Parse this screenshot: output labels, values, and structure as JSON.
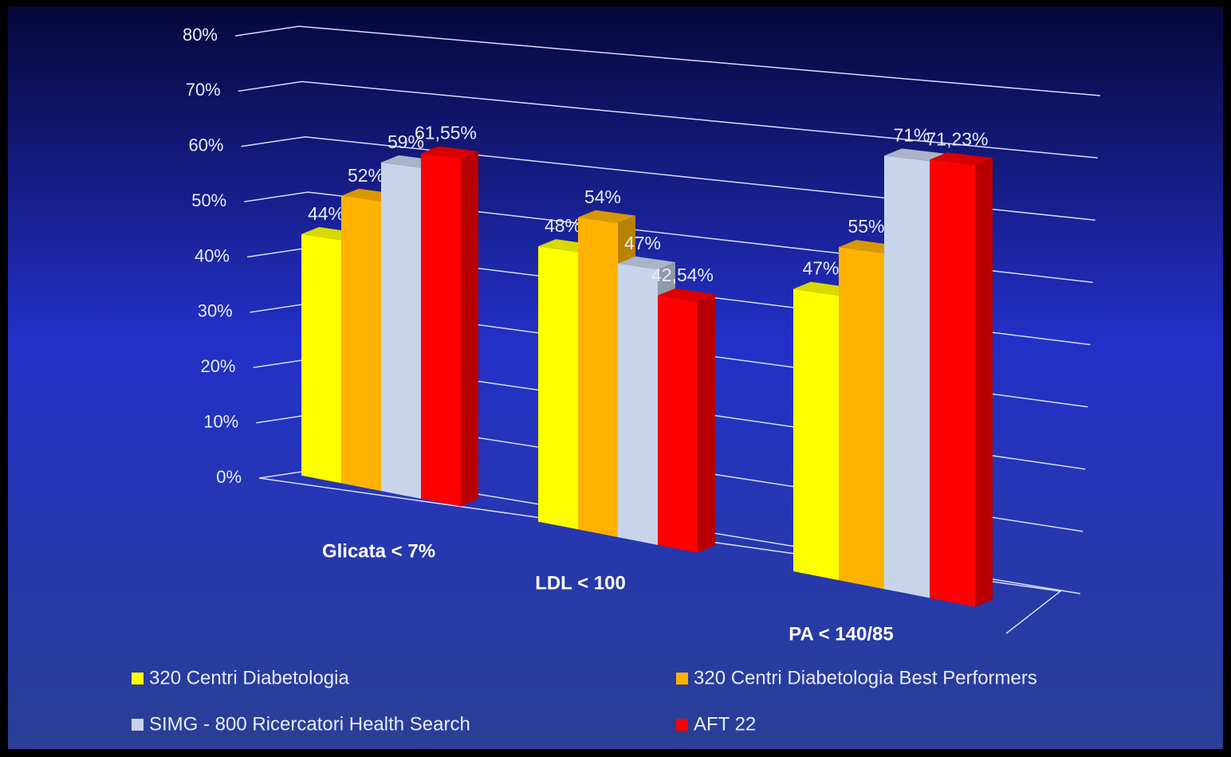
{
  "chart_data": {
    "type": "bar3d",
    "categories": [
      "Glicata < 7%",
      "LDL < 100",
      "PA < 140/85"
    ],
    "series": [
      {
        "name": "320 Centri Diabetologia",
        "color": "#ffff00",
        "values": [
          44,
          48,
          47
        ],
        "value_labels": [
          "44%",
          "48%",
          "47%"
        ]
      },
      {
        "name": "320 Centri Diabetologia Best Performers",
        "color": "#ffb300",
        "values": [
          52,
          54,
          55
        ],
        "value_labels": [
          "52%",
          "54%",
          "55%"
        ]
      },
      {
        "name": "SIMG - 800 Ricercatori Health Search",
        "color": "#c8d4ea",
        "values": [
          59,
          47,
          71
        ],
        "value_labels": [
          "59%",
          "47%",
          "71%"
        ]
      },
      {
        "name": "AFT 22",
        "color": "#ff0000",
        "values": [
          61.55,
          42.54,
          71.23
        ],
        "value_labels": [
          "61,55%",
          "42,54%",
          "71,23%"
        ]
      }
    ],
    "ylim": [
      0,
      80
    ],
    "yticks": [
      {
        "value": 0,
        "label": "0%"
      },
      {
        "value": 10,
        "label": "10%"
      },
      {
        "value": 20,
        "label": "20%"
      },
      {
        "value": 30,
        "label": "30%"
      },
      {
        "value": 40,
        "label": "40%"
      },
      {
        "value": 50,
        "label": "50%"
      },
      {
        "value": 60,
        "label": "60%"
      },
      {
        "value": 70,
        "label": "70%"
      },
      {
        "value": 80,
        "label": "80%"
      }
    ],
    "grid": true
  }
}
